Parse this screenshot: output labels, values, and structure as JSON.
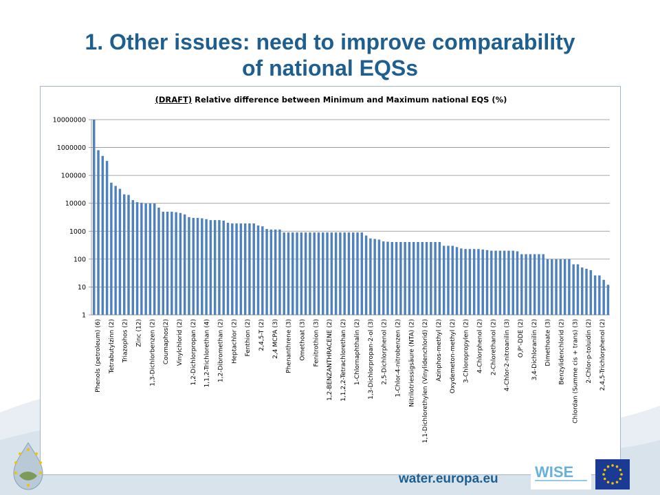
{
  "slide": {
    "title_line1": "1. Other issues: need to improve comparability",
    "title_line2": "of national EQSs",
    "footer_url": "water.europa.eu",
    "icons": [
      "water-drop-eu-logo-icon",
      "wise-logo-icon",
      "eu-flag-icon"
    ],
    "colors": {
      "title": "#1f5f8f",
      "bar": "#4f81bd",
      "frame": "#9fb6cc"
    }
  },
  "chart_data": {
    "type": "bar",
    "title_prefix": "(DRAFT)",
    "title_rest": " Relative difference between Minimum and Maximum national EQS (%)",
    "yscale": "log",
    "ylim": [
      1,
      10000000
    ],
    "yticks": [
      "1",
      "10",
      "100",
      "1000",
      "10000",
      "100000",
      "1000000",
      "10000000"
    ],
    "grid": true,
    "legend": "none",
    "xlabels": [
      "Phenols (petroleum) (6)",
      "Tetrabutylzinn (2)",
      "Triazophos (2)",
      "Zinc (12)",
      "1,3-Dichlorbenzen (2)",
      "Coumaphos(2)",
      "Vinylchlorid (2)",
      "1,2-Dichlorpropan (2)",
      "1,1,2-Trichlorethan (4)",
      "1,2-Dibromethan (2)",
      "Heptachlor (2)",
      "Fenthion (2)",
      "2,4,5-T (2)",
      "2,4 MCPA (3)",
      "Phenanthrene (3)",
      "Omethoat (3)",
      "Fenitrothion (3)",
      "1,2-BENZANTHRACENE (2)",
      "1,1,2,2-Tetrachlorethan (2)",
      "1-Chlornaphthalin (2)",
      "1,3-Dichlorpropan-2-ol (3)",
      "2,5-Dichlorphenol (2)",
      "1-Chlor-4-nitrobenzen (2)",
      "Nitrilotriessigsäure (NTA) (2)",
      "1,1-Dichlorethylen (Vinylidenchlorid) (2)",
      "Azinphos-methyl (2)",
      "Oxydemeton-methyl (2)",
      "3-Chloropropylen (2)",
      "4-Chlorphenol (2)",
      "2-Chlorethanol (2)",
      "4-Chlor-2-nitroanilin (3)",
      "O,P'-DDE (2)",
      "3,4-Dichloranilin (2)",
      "Dimethoate (3)",
      "Benzylidenchlorid (2)",
      "Chlordan (Summe cis + trans) (3)",
      "2-Chlor-p-toluidin (2)",
      "2,4,5-Trichlorphenol (2)"
    ],
    "values": [
      10000000,
      800000,
      500000,
      330000,
      55000,
      42000,
      33000,
      21000,
      20000,
      13000,
      11000,
      10500,
      10000,
      10000,
      10000,
      7000,
      5000,
      5000,
      5000,
      4800,
      4500,
      4000,
      3200,
      3000,
      3000,
      2900,
      2700,
      2500,
      2500,
      2500,
      2400,
      2000,
      1900,
      1900,
      1900,
      1900,
      1900,
      1900,
      1600,
      1500,
      1200,
      1150,
      1150,
      1150,
      900,
      900,
      900,
      900,
      900,
      900,
      900,
      900,
      900,
      900,
      900,
      900,
      900,
      900,
      900,
      900,
      900,
      900,
      900,
      700,
      550,
      530,
      500,
      430,
      420,
      410,
      410,
      410,
      410,
      410,
      410,
      410,
      410,
      410,
      410,
      410,
      410,
      300,
      300,
      300,
      270,
      240,
      230,
      230,
      230,
      230,
      220,
      210,
      200,
      200,
      200,
      200,
      200,
      200,
      190,
      150,
      150,
      150,
      150,
      150,
      150,
      100,
      100,
      100,
      100,
      100,
      100,
      65,
      65,
      50,
      45,
      40,
      26,
      26,
      18,
      12
    ]
  }
}
